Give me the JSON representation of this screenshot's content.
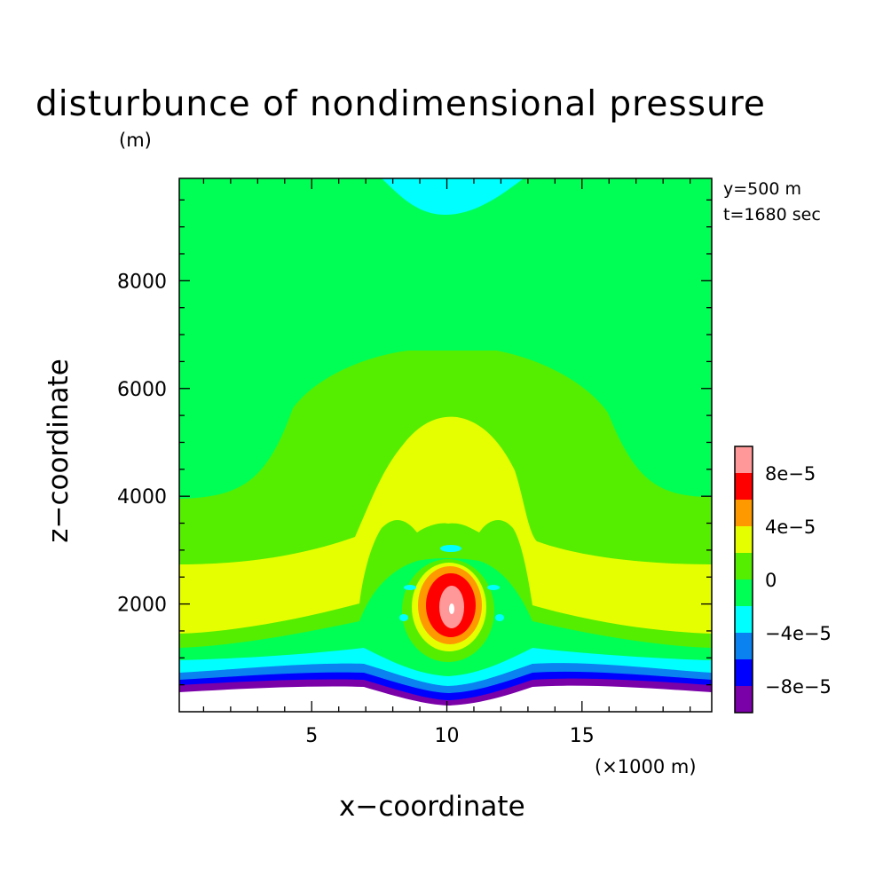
{
  "chart_data": {
    "type": "contour",
    "title": "disturbunce of nondimensional pressure",
    "y_unit_label": "(m)",
    "xlabel": "x−coordinate",
    "x_unit_label": "(×1000 m)",
    "ylabel": "z−coordinate",
    "annotations": [
      "y=500 m",
      "t=1680 sec"
    ],
    "x_ticks": [
      "5",
      "10",
      "15"
    ],
    "x_tick_values": [
      5,
      10,
      15
    ],
    "y_ticks": [
      "2000",
      "4000",
      "6000",
      "8000"
    ],
    "y_tick_values": [
      2000,
      4000,
      6000,
      8000
    ],
    "xlim": [
      0.1,
      19.8
    ],
    "ylim": [
      0,
      9900
    ],
    "grid": false,
    "colorbar": {
      "placement": "right",
      "levels": [
        -0.0001,
        -8e-05,
        -6e-05,
        -4e-05,
        -2e-05,
        0,
        2e-05,
        4e-05,
        6e-05,
        8e-05,
        0.0001
      ],
      "colors": [
        "#7a00a8",
        "#0000ff",
        "#0a82f0",
        "#00ffff",
        "#00ff55",
        "#55ee00",
        "#e6ff00",
        "#ff9900",
        "#ff0000",
        "#ff9999"
      ],
      "labels": [
        "8e−5",
        "4e−5",
        "0",
        "−4e−5",
        "−8e−5"
      ],
      "label_values": [
        8e-05,
        4e-05,
        0,
        -4e-05,
        -8e-05
      ]
    },
    "regions": [
      {
        "name": "background",
        "value_range": "0 to 2e-5",
        "color": "#00ff55"
      },
      {
        "name": "top-negative-lobe",
        "value_range": "-2e-5 to -4e-5",
        "color": "#00ffff"
      },
      {
        "name": "mid-positive-dome",
        "value_range": "2e-5 to 4e-5",
        "color": "#55ee00"
      },
      {
        "name": "core-positive",
        "value_range": "4e-5 to 6e-5",
        "color": "#e6ff00"
      },
      {
        "name": "max-core",
        "value_range": ">1e-4",
        "color": "#ff9999"
      },
      {
        "name": "surface-negative-layers",
        "value_range": "<-2e-5",
        "color": "#0000ff"
      }
    ]
  }
}
